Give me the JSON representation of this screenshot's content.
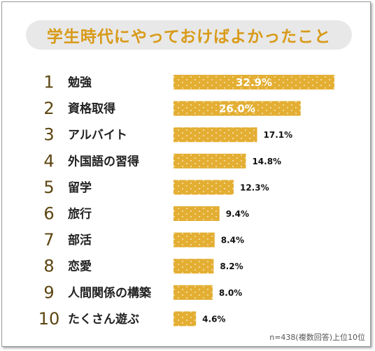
{
  "title": "学生時代にやっておけばよかったこと",
  "note": "n=438(複数回答)上位10位",
  "colors": {
    "bar": "#e3ae32",
    "title": "#d89a18",
    "pill": "#e8e8e8"
  },
  "chart_data": {
    "type": "bar",
    "orientation": "horizontal",
    "ranks": [
      "1",
      "2",
      "3",
      "4",
      "5",
      "6",
      "7",
      "8",
      "9",
      "10"
    ],
    "categories": [
      "勉強",
      "資格取得",
      "アルバイト",
      "外国語の習得",
      "留学",
      "旅行",
      "部活",
      "恋愛",
      "人間関係の構築",
      "たくさん遊ぶ"
    ],
    "values": [
      32.9,
      26.0,
      17.1,
      14.8,
      12.3,
      9.4,
      8.4,
      8.2,
      8.0,
      4.6
    ],
    "labels": [
      "32.9%",
      "26.0%",
      "17.1%",
      "14.8%",
      "12.3%",
      "9.4%",
      "8.4%",
      "8.2%",
      "8.0%",
      "4.6%"
    ],
    "inside_label_count": 2,
    "xlim": [
      0,
      32.9
    ]
  }
}
